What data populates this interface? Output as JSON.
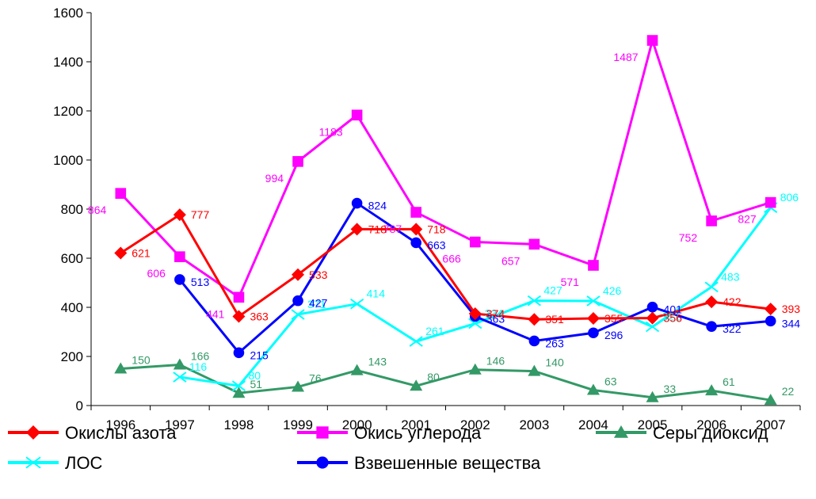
{
  "chart_data": {
    "type": "line",
    "title": "",
    "xlabel": "",
    "ylabel": "",
    "ylim": [
      0,
      1600
    ],
    "yticks": [
      0,
      200,
      400,
      600,
      800,
      1000,
      1200,
      1400,
      1600
    ],
    "categories": [
      "1996",
      "1997",
      "1998",
      "1999",
      "2000",
      "2001",
      "2002",
      "2003",
      "2004",
      "2005",
      "2006",
      "2007"
    ],
    "grid": false,
    "legend_position": "bottom",
    "series": [
      {
        "name": "Окислы азота",
        "color": "#ff0000",
        "marker": "diamond",
        "values": [
          621,
          777,
          363,
          533,
          718,
          718,
          374,
          351,
          355,
          356,
          422,
          393
        ]
      },
      {
        "name": "Окись углерода",
        "color": "#ff00ff",
        "marker": "square",
        "values": [
          864,
          606,
          441,
          994,
          1183,
          787,
          666,
          657,
          571,
          1487,
          752,
          827
        ]
      },
      {
        "name": "Серы диоксид",
        "color": "#339966",
        "marker": "triangle",
        "values": [
          150,
          166,
          51,
          76,
          143,
          80,
          146,
          140,
          63,
          33,
          61,
          22
        ]
      },
      {
        "name": "ЛОС",
        "color": "#00ffff",
        "marker": "x",
        "values": [
          null,
          116,
          80,
          371,
          414,
          261,
          334,
          427,
          426,
          321,
          483,
          806
        ]
      },
      {
        "name": "Взвешенные вещества",
        "color": "#0000ff",
        "marker": "circle",
        "values": [
          null,
          513,
          215,
          427,
          824,
          663,
          363,
          263,
          296,
          401,
          322,
          344
        ]
      }
    ]
  }
}
